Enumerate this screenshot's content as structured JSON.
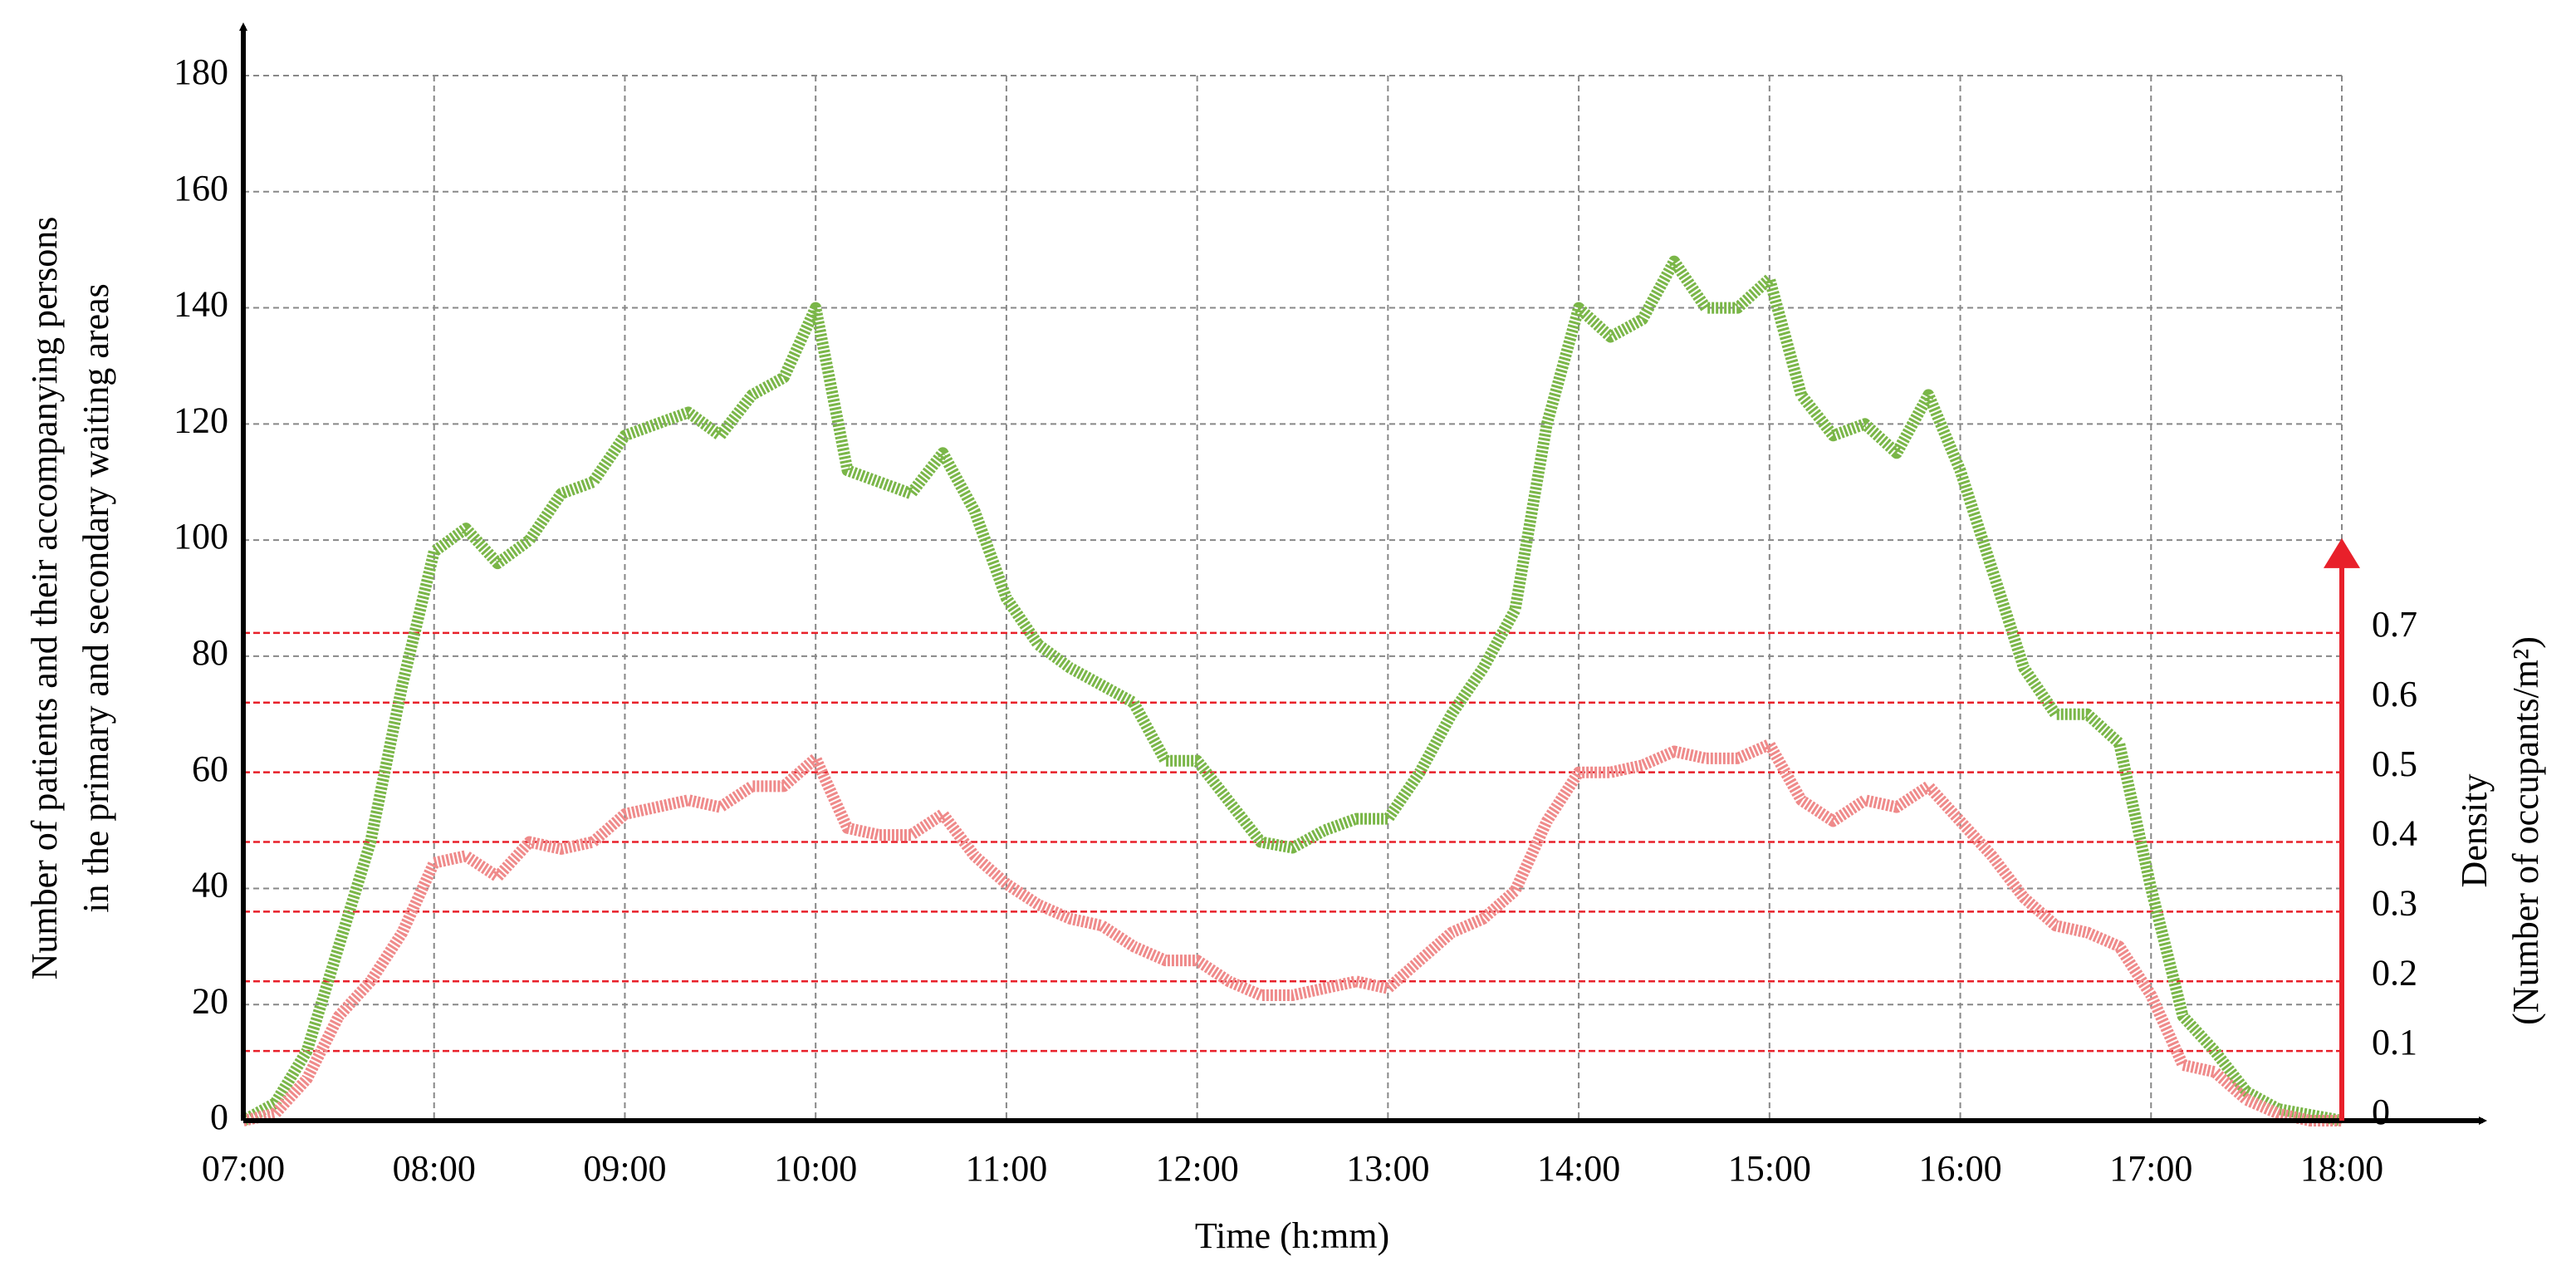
{
  "chart_data": {
    "type": "line",
    "xlabel": "Time (h:mm)",
    "ylabel": [
      "Number of patients and their accompanying persons",
      "in the primary and secondary waiting areas"
    ],
    "y2label": [
      "Density",
      "(Number of occupants/m²)"
    ],
    "x": [
      "07:00",
      "07:10",
      "07:20",
      "07:30",
      "07:40",
      "07:50",
      "08:00",
      "08:10",
      "08:20",
      "08:30",
      "08:40",
      "08:50",
      "09:00",
      "09:10",
      "09:20",
      "09:30",
      "09:40",
      "09:50",
      "10:00",
      "10:10",
      "10:20",
      "10:30",
      "10:40",
      "10:50",
      "11:00",
      "11:10",
      "11:20",
      "11:30",
      "11:40",
      "11:50",
      "12:00",
      "12:10",
      "12:20",
      "12:30",
      "12:40",
      "12:50",
      "13:00",
      "13:10",
      "13:20",
      "13:30",
      "13:40",
      "13:50",
      "14:00",
      "14:10",
      "14:20",
      "14:30",
      "14:40",
      "14:50",
      "15:00",
      "15:10",
      "15:20",
      "15:30",
      "15:40",
      "15:50",
      "16:00",
      "16:10",
      "16:20",
      "16:30",
      "16:40",
      "16:50",
      "17:00",
      "17:10",
      "17:20",
      "17:30",
      "17:40",
      "17:50",
      "18:00"
    ],
    "series": [
      {
        "color": "#7ab648",
        "values": [
          0,
          3,
          12,
          30,
          48,
          75,
          98,
          102,
          96,
          100,
          108,
          110,
          118,
          120,
          122,
          118,
          125,
          128,
          140,
          112,
          110,
          108,
          115,
          105,
          90,
          82,
          78,
          75,
          72,
          62,
          62,
          55,
          48,
          47,
          50,
          52,
          52,
          60,
          70,
          78,
          88,
          120,
          140,
          135,
          138,
          148,
          140,
          140,
          145,
          125,
          118,
          120,
          115,
          125,
          112,
          95,
          78,
          70,
          70,
          65,
          40,
          18,
          12,
          5,
          2,
          1,
          0
        ]
      },
      {
        "color": "#ef8a8a",
        "axis": "y2",
        "values": [
          0,
          0.01,
          0.06,
          0.15,
          0.2,
          0.27,
          0.37,
          0.38,
          0.35,
          0.4,
          0.39,
          0.4,
          0.44,
          0.45,
          0.46,
          0.45,
          0.48,
          0.48,
          0.52,
          0.42,
          0.41,
          0.41,
          0.44,
          0.38,
          0.34,
          0.31,
          0.29,
          0.28,
          0.25,
          0.23,
          0.23,
          0.2,
          0.18,
          0.18,
          0.19,
          0.2,
          0.19,
          0.23,
          0.27,
          0.29,
          0.33,
          0.43,
          0.5,
          0.5,
          0.51,
          0.53,
          0.52,
          0.52,
          0.54,
          0.46,
          0.43,
          0.46,
          0.45,
          0.48,
          0.43,
          0.38,
          0.32,
          0.28,
          0.27,
          0.25,
          0.18,
          0.08,
          0.07,
          0.03,
          0.01,
          0,
          0
        ]
      }
    ],
    "xlim": [
      "07:00",
      "18:00"
    ],
    "xticks": [
      "07:00",
      "08:00",
      "09:00",
      "10:00",
      "11:00",
      "12:00",
      "13:00",
      "14:00",
      "15:00",
      "16:00",
      "17:00",
      "18:00"
    ],
    "ylim": [
      0,
      180
    ],
    "yticks": [
      0,
      20,
      40,
      60,
      80,
      100,
      120,
      140,
      160,
      180
    ],
    "y2lim": [
      0,
      1.5
    ],
    "y2ticks": [
      0,
      0.1,
      0.2,
      0.3,
      0.4,
      0.5,
      0.6,
      0.7
    ],
    "grid": true,
    "y2_grid_color": "#e8202a"
  }
}
